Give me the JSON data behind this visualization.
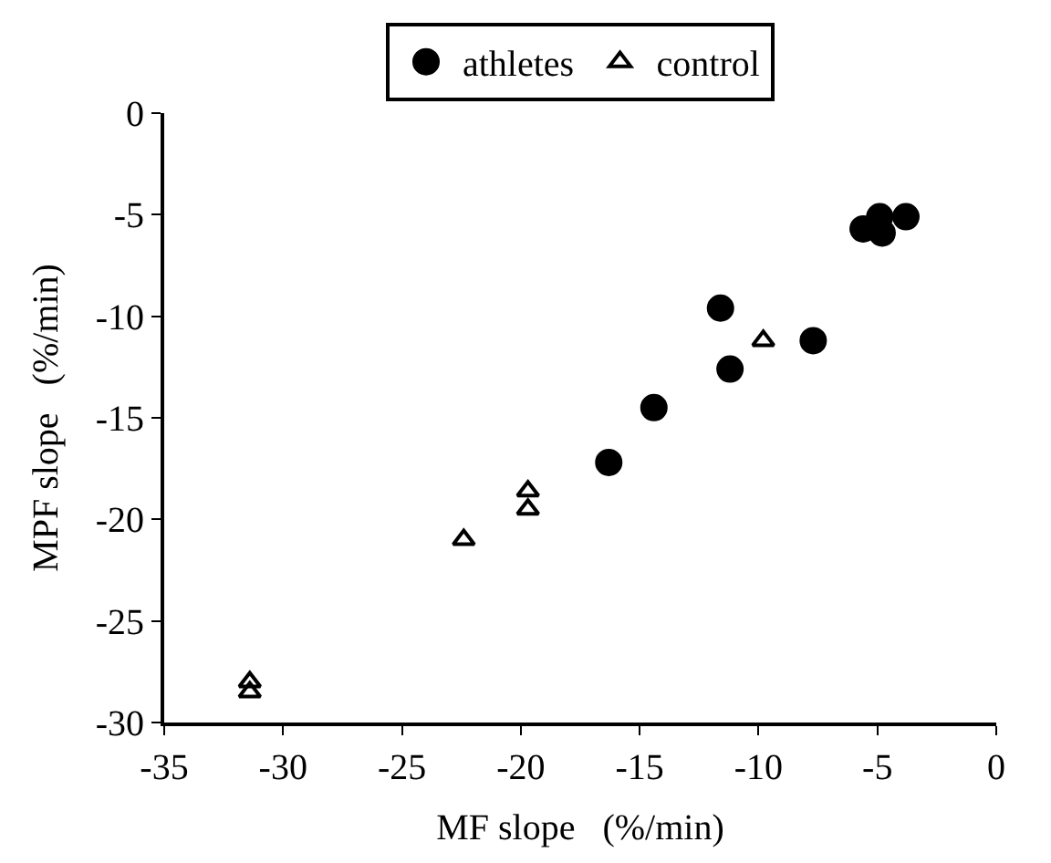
{
  "chart_data": {
    "type": "scatter",
    "xlabel": "MF slope   (%/min)",
    "ylabel": "MPF slope   (%/min)",
    "xlim": [
      -35,
      0
    ],
    "xticks": [
      -35,
      -30,
      -25,
      -20,
      -15,
      -10,
      -5,
      0
    ],
    "ylim": [
      -30,
      0
    ],
    "yticks": [
      -30,
      -25,
      -20,
      -15,
      -10,
      -5,
      0
    ],
    "legend": "top",
    "series": [
      {
        "name": "athletes",
        "color": "#000000",
        "marker": "circle",
        "x": [
          -5.6,
          -4.9,
          -4.8,
          -3.8,
          -11.6,
          -11.2,
          -7.7,
          -14.4,
          -16.3
        ],
        "values": [
          -5.7,
          -5.1,
          -5.9,
          -5.1,
          -9.6,
          -12.6,
          -11.2,
          -14.5,
          -17.2
        ]
      },
      {
        "name": "control",
        "color": "#000000",
        "marker": "triangle",
        "x": [
          -9.8,
          -22.4,
          -19.7,
          -19.7,
          -31.4,
          -31.4
        ],
        "values": [
          -11.2,
          -21.0,
          -18.6,
          -19.5,
          -28.0,
          -28.5
        ]
      }
    ]
  }
}
